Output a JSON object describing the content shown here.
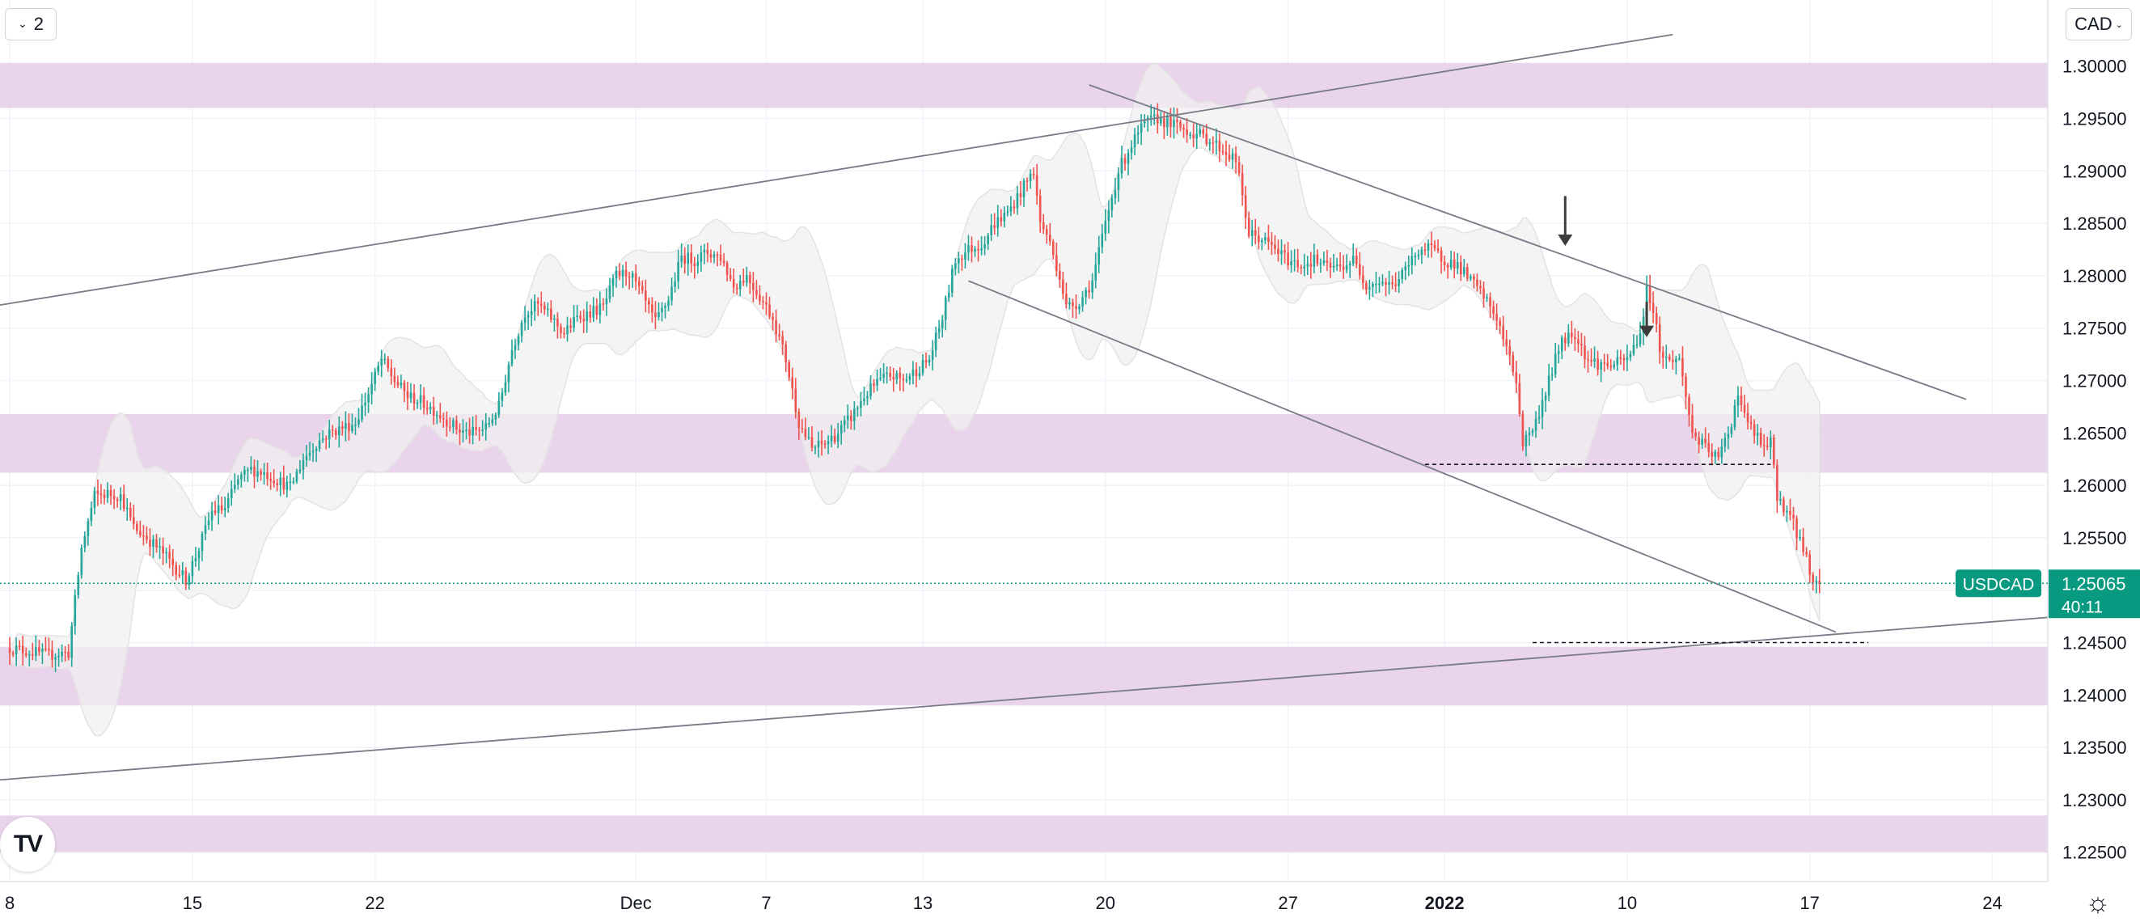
{
  "toolbar": {
    "layout_count": "2",
    "currency": "CAD"
  },
  "logo_text": "TV",
  "icons": {
    "chevron": "chevron-down-icon",
    "settings": "gear-icon",
    "logo": "tradingview-logo"
  },
  "colors": {
    "up": "#26a69a",
    "down": "#ef5350",
    "zone": "#e6cce9",
    "band": "#f0f0f0",
    "badge": "#089981",
    "line": "#787b86",
    "grid": "#f0f3fa"
  },
  "chart_data": {
    "type": "candlestick",
    "symbol": "USDCAD",
    "last_price": "1.25065",
    "countdown": "40:11",
    "y_ticks": [
      "1.22500",
      "1.23000",
      "1.23500",
      "1.24000",
      "1.24500",
      "1.25000",
      "1.25500",
      "1.26000",
      "1.26500",
      "1.27000",
      "1.27500",
      "1.28000",
      "1.28500",
      "1.29000",
      "1.29500",
      "1.30000"
    ],
    "y_range": [
      1.2222,
      1.3063
    ],
    "x_ticks": [
      {
        "label": "8",
        "t": 0,
        "bold": false
      },
      {
        "label": "15",
        "t": 56,
        "bold": false
      },
      {
        "label": "22",
        "t": 112,
        "bold": false
      },
      {
        "label": "Dec",
        "t": 192,
        "bold": false
      },
      {
        "label": "7",
        "t": 232,
        "bold": false
      },
      {
        "label": "13",
        "t": 280,
        "bold": false
      },
      {
        "label": "20",
        "t": 336,
        "bold": false
      },
      {
        "label": "27",
        "t": 392,
        "bold": false
      },
      {
        "label": "2022",
        "t": 440,
        "bold": true
      },
      {
        "label": "10",
        "t": 496,
        "bold": false
      },
      {
        "label": "17",
        "t": 552,
        "bold": false
      },
      {
        "label": "24",
        "t": 608,
        "bold": false
      }
    ],
    "x_range": [
      -3,
      625
    ],
    "zones": [
      [
        1.296,
        1.3003
      ],
      [
        1.2612,
        1.2668
      ],
      [
        1.239,
        1.2446
      ],
      [
        1.225,
        1.2285
      ]
    ],
    "trend_lines": [
      [
        -3,
        1.2772,
        510,
        1.303
      ],
      [
        -3,
        1.2319,
        625,
        1.2474
      ],
      [
        331,
        1.2982,
        600,
        1.2682
      ],
      [
        294,
        1.2795,
        560,
        1.246
      ]
    ],
    "dashed_levels": [
      [
        434,
        540,
        1.262
      ],
      [
        467,
        570,
        1.245
      ]
    ],
    "arrows": [
      [
        477,
        1.2876,
        1.283
      ],
      [
        502,
        1.2775,
        1.2743
      ]
    ],
    "start_price": 1.2445,
    "anchors": [
      [
        0,
        1.2445
      ],
      [
        12,
        1.2438
      ],
      [
        16,
        1.244
      ],
      [
        18,
        1.244
      ],
      [
        22,
        1.254
      ],
      [
        26,
        1.259
      ],
      [
        30,
        1.2592
      ],
      [
        34,
        1.259
      ],
      [
        38,
        1.256
      ],
      [
        42,
        1.255
      ],
      [
        47,
        1.2535
      ],
      [
        54,
        1.251
      ],
      [
        58,
        1.254
      ],
      [
        62,
        1.2575
      ],
      [
        66,
        1.2578
      ],
      [
        70,
        1.2605
      ],
      [
        74,
        1.2615
      ],
      [
        78,
        1.2612
      ],
      [
        82,
        1.2605
      ],
      [
        86,
        1.2598
      ],
      [
        90,
        1.2625
      ],
      [
        94,
        1.264
      ],
      [
        98,
        1.265
      ],
      [
        102,
        1.2655
      ],
      [
        106,
        1.266
      ],
      [
        110,
        1.2688
      ],
      [
        114,
        1.272
      ],
      [
        118,
        1.27
      ],
      [
        122,
        1.2685
      ],
      [
        126,
        1.268
      ],
      [
        130,
        1.2672
      ],
      [
        134,
        1.2662
      ],
      [
        138,
        1.2652
      ],
      [
        142,
        1.265
      ],
      [
        146,
        1.2655
      ],
      [
        150,
        1.2675
      ],
      [
        154,
        1.273
      ],
      [
        158,
        1.2765
      ],
      [
        162,
        1.2772
      ],
      [
        166,
        1.276
      ],
      [
        170,
        1.2745
      ],
      [
        174,
        1.276
      ],
      [
        178,
        1.2765
      ],
      [
        182,
        1.277
      ],
      [
        186,
        1.28
      ],
      [
        190,
        1.2803
      ],
      [
        194,
        1.278
      ],
      [
        198,
        1.2755
      ],
      [
        202,
        1.2778
      ],
      [
        206,
        1.2818
      ],
      [
        210,
        1.2815
      ],
      [
        214,
        1.2822
      ],
      [
        218,
        1.2818
      ],
      [
        222,
        1.279
      ],
      [
        226,
        1.28
      ],
      [
        230,
        1.278
      ],
      [
        234,
        1.276
      ],
      [
        238,
        1.272
      ],
      [
        240,
        1.269
      ],
      [
        242,
        1.266
      ],
      [
        246,
        1.2635
      ],
      [
        250,
        1.264
      ],
      [
        254,
        1.265
      ],
      [
        258,
        1.2665
      ],
      [
        262,
        1.2685
      ],
      [
        266,
        1.2698
      ],
      [
        270,
        1.2705
      ],
      [
        274,
        1.27
      ],
      [
        278,
        1.271
      ],
      [
        282,
        1.272
      ],
      [
        286,
        1.276
      ],
      [
        290,
        1.2815
      ],
      [
        294,
        1.2825
      ],
      [
        298,
        1.283
      ],
      [
        302,
        1.285
      ],
      [
        306,
        1.286
      ],
      [
        310,
        1.288
      ],
      [
        314,
        1.29
      ],
      [
        316,
        1.285
      ],
      [
        318,
        1.284
      ],
      [
        322,
        1.28
      ],
      [
        324,
        1.277
      ],
      [
        328,
        1.2775
      ],
      [
        332,
        1.2795
      ],
      [
        336,
        1.285
      ],
      [
        340,
        1.29
      ],
      [
        344,
        1.2925
      ],
      [
        348,
        1.2945
      ],
      [
        352,
        1.295
      ],
      [
        356,
        1.2945
      ],
      [
        360,
        1.294
      ],
      [
        364,
        1.2935
      ],
      [
        368,
        1.293
      ],
      [
        372,
        1.292
      ],
      [
        376,
        1.291
      ],
      [
        380,
        1.284
      ],
      [
        384,
        1.2835
      ],
      [
        388,
        1.2825
      ],
      [
        392,
        1.2815
      ],
      [
        396,
        1.281
      ],
      [
        400,
        1.2815
      ],
      [
        404,
        1.2808
      ],
      [
        408,
        1.2808
      ],
      [
        412,
        1.2815
      ],
      [
        416,
        1.2792
      ],
      [
        420,
        1.2795
      ],
      [
        424,
        1.279
      ],
      [
        428,
        1.2805
      ],
      [
        432,
        1.2825
      ],
      [
        436,
        1.2825
      ],
      [
        440,
        1.2815
      ],
      [
        444,
        1.281
      ],
      [
        448,
        1.2795
      ],
      [
        452,
        1.278
      ],
      [
        456,
        1.276
      ],
      [
        460,
        1.272
      ],
      [
        462,
        1.27
      ],
      [
        464,
        1.264
      ],
      [
        468,
        1.266
      ],
      [
        472,
        1.27
      ],
      [
        476,
        1.274
      ],
      [
        480,
        1.2745
      ],
      [
        484,
        1.272
      ],
      [
        488,
        1.2715
      ],
      [
        492,
        1.2715
      ],
      [
        496,
        1.272
      ],
      [
        500,
        1.2745
      ],
      [
        502,
        1.2785
      ],
      [
        504,
        1.277
      ],
      [
        506,
        1.273
      ],
      [
        508,
        1.272
      ],
      [
        512,
        1.272
      ],
      [
        516,
        1.265
      ],
      [
        520,
        1.2635
      ],
      [
        524,
        1.2625
      ],
      [
        528,
        1.266
      ],
      [
        530,
        1.269
      ],
      [
        532,
        1.2665
      ],
      [
        536,
        1.2645
      ],
      [
        538,
        1.2635
      ],
      [
        540,
        1.264
      ],
      [
        542,
        1.259
      ],
      [
        546,
        1.257
      ],
      [
        550,
        1.254
      ],
      [
        552,
        1.252
      ],
      [
        553,
        1.2507
      ],
      [
        555,
        1.2506
      ]
    ]
  }
}
